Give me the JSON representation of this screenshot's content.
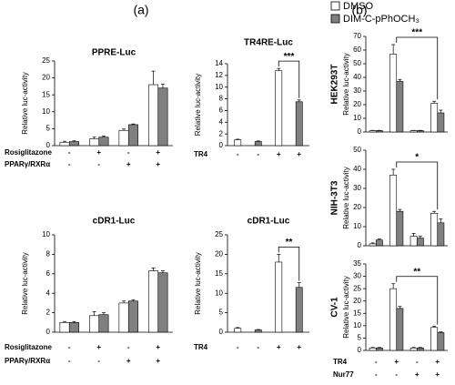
{
  "panel_labels": [
    "(a)",
    "(b)"
  ],
  "legend": [
    {
      "label": "DMSO",
      "color": "#ffffff"
    },
    {
      "label": "DIM-C-pPhOCH₃",
      "color": "#808080"
    }
  ],
  "chart_data": [
    {
      "type": "bar",
      "title": "PPRE-Luc",
      "ylabel": "Relative luc-activity",
      "ylim": [
        0,
        25
      ],
      "yticks": [
        0,
        5,
        10,
        15,
        20,
        25
      ],
      "series": [
        {
          "values": [
            1,
            2,
            4.5,
            18
          ],
          "errors": [
            0.3,
            0.5,
            0.4,
            4
          ]
        },
        {
          "values": [
            1.2,
            2.5,
            6.2,
            17
          ],
          "errors": [
            0.2,
            0.3,
            0.2,
            1.2
          ]
        }
      ],
      "conditions": [
        {
          "label": "Rosiglitazone",
          "values": [
            "-",
            "+",
            "-",
            "+"
          ]
        },
        {
          "label": "PPARγ/RXRα",
          "values": [
            "-",
            "-",
            "+",
            "+"
          ]
        }
      ]
    },
    {
      "type": "bar",
      "title": "TR4RE-Luc",
      "ylabel": "Relative luc-activity",
      "ylim": [
        0,
        14
      ],
      "yticks": [
        0,
        2,
        4,
        6,
        8,
        10,
        12,
        14
      ],
      "series": [
        {
          "values": [
            1,
            null,
            12.8,
            null
          ],
          "errors": [
            0.1,
            null,
            0.4,
            null
          ]
        },
        {
          "values": [
            null,
            0.7,
            null,
            7.5
          ],
          "errors": [
            null,
            0.1,
            null,
            0.3
          ]
        }
      ],
      "conditions": [
        {
          "label": "TR4",
          "values": [
            "-",
            "-",
            "+",
            "+"
          ]
        }
      ],
      "significance": "***"
    },
    {
      "type": "bar",
      "title": "cDR1-Luc",
      "ylabel": "Relative luc-activity",
      "ylim": [
        0,
        10
      ],
      "yticks": [
        0,
        2,
        4,
        6,
        8,
        10
      ],
      "series": [
        {
          "values": [
            1,
            1.7,
            3,
            6.3
          ],
          "errors": [
            0.1,
            0.4,
            0.2,
            0.3
          ]
        },
        {
          "values": [
            1,
            1.8,
            3.2,
            6.1
          ],
          "errors": [
            0.1,
            0.2,
            0.1,
            0.2
          ]
        }
      ],
      "conditions": [
        {
          "label": "Rosiglitazone",
          "values": [
            "-",
            "+",
            "-",
            "+"
          ]
        },
        {
          "label": "PPARγ/RXRα",
          "values": [
            "-",
            "-",
            "+",
            "+"
          ]
        }
      ]
    },
    {
      "type": "bar",
      "title": "cDR1-Luc",
      "ylabel": "Relative luc-activity",
      "ylim": [
        0,
        25
      ],
      "yticks": [
        0,
        5,
        10,
        15,
        20,
        25
      ],
      "series": [
        {
          "values": [
            1,
            null,
            18,
            null
          ],
          "errors": [
            0.2,
            null,
            2,
            null
          ]
        },
        {
          "values": [
            null,
            0.6,
            null,
            11.5
          ],
          "errors": [
            null,
            0.1,
            null,
            1.2
          ]
        }
      ],
      "conditions": [
        {
          "label": "TR4",
          "values": [
            "-",
            "-",
            "+",
            "+"
          ]
        }
      ],
      "significance": "**"
    },
    {
      "type": "bar",
      "title": "HEK293T",
      "ylabel": "Relative luc-activity",
      "ylim": [
        0,
        70
      ],
      "yticks": [
        0,
        10,
        20,
        30,
        40,
        50,
        60,
        70
      ],
      "series": [
        {
          "values": [
            1,
            57,
            1,
            21
          ],
          "errors": [
            0.2,
            7,
            0.2,
            1.5
          ]
        },
        {
          "values": [
            1,
            37,
            1,
            14
          ],
          "errors": [
            0.2,
            1.5,
            0.2,
            2
          ]
        }
      ],
      "significance": "***"
    },
    {
      "type": "bar",
      "title": "NIH-3T3",
      "ylabel": "Relative luc-activity",
      "ylim": [
        0,
        50
      ],
      "yticks": [
        0,
        10,
        20,
        30,
        40,
        50
      ],
      "series": [
        {
          "values": [
            1,
            37,
            5,
            17
          ],
          "errors": [
            0.5,
            3,
            1.5,
            1
          ]
        },
        {
          "values": [
            3,
            18,
            4,
            12
          ],
          "errors": [
            0.5,
            1,
            1,
            2
          ]
        }
      ],
      "significance": "*"
    },
    {
      "type": "bar",
      "title": "CV-1",
      "ylabel": "Relative luc-activity",
      "ylim": [
        0,
        35
      ],
      "yticks": [
        0,
        5,
        10,
        15,
        20,
        25,
        30,
        35
      ],
      "series": [
        {
          "values": [
            1,
            25,
            1,
            9.3
          ],
          "errors": [
            0.2,
            2,
            0.2,
            0.4
          ]
        },
        {
          "values": [
            1,
            17,
            1,
            7.2
          ],
          "errors": [
            0.2,
            0.8,
            0.2,
            0.3
          ]
        }
      ],
      "conditions": [
        {
          "label": "TR4",
          "values": [
            "-",
            "+",
            "-",
            "+"
          ]
        },
        {
          "label": "Nur77",
          "values": [
            "-",
            "-",
            "+",
            "+"
          ]
        }
      ],
      "significance": "**"
    }
  ]
}
